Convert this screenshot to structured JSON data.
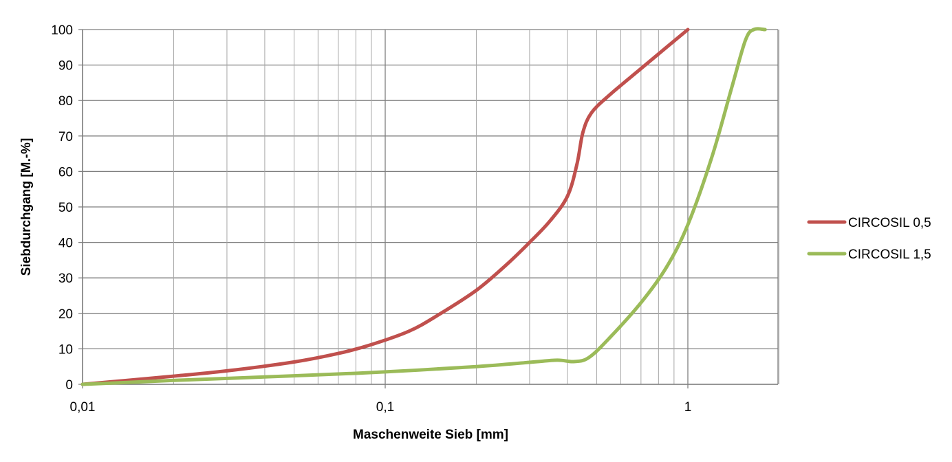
{
  "chart_data": {
    "type": "line",
    "title": "",
    "xlabel": "Maschenweite Sieb [mm]",
    "ylabel": "Siebdurchgang [M.-%]",
    "x_scale": "log",
    "xlim": [
      0.01,
      2
    ],
    "ylim": [
      0,
      100
    ],
    "grid": true,
    "legend_position": "right",
    "x_tick_labels": [
      {
        "value": 0.01,
        "label": "0,01"
      },
      {
        "value": 0.1,
        "label": "0,1"
      },
      {
        "value": 1,
        "label": "1"
      }
    ],
    "y_tick_labels": [
      {
        "value": 0,
        "label": "0"
      },
      {
        "value": 10,
        "label": "10"
      },
      {
        "value": 20,
        "label": "20"
      },
      {
        "value": 30,
        "label": "30"
      },
      {
        "value": 40,
        "label": "40"
      },
      {
        "value": 50,
        "label": "50"
      },
      {
        "value": 60,
        "label": "60"
      },
      {
        "value": 70,
        "label": "70"
      },
      {
        "value": 80,
        "label": "80"
      },
      {
        "value": 90,
        "label": "90"
      },
      {
        "value": 100,
        "label": "100"
      }
    ],
    "series": [
      {
        "name": "CIRCOSIL 0,5",
        "color": "#c0504d",
        "points": [
          {
            "x": 0.01,
            "y": 0
          },
          {
            "x": 0.02,
            "y": 2.3
          },
          {
            "x": 0.03,
            "y": 3.8
          },
          {
            "x": 0.05,
            "y": 6.3
          },
          {
            "x": 0.07,
            "y": 8.7
          },
          {
            "x": 0.09,
            "y": 11.2
          },
          {
            "x": 0.12,
            "y": 15
          },
          {
            "x": 0.15,
            "y": 19.6
          },
          {
            "x": 0.2,
            "y": 26.5
          },
          {
            "x": 0.25,
            "y": 33.5
          },
          {
            "x": 0.3,
            "y": 40
          },
          {
            "x": 0.35,
            "y": 46
          },
          {
            "x": 0.4,
            "y": 53
          },
          {
            "x": 0.43,
            "y": 62
          },
          {
            "x": 0.45,
            "y": 71
          },
          {
            "x": 0.48,
            "y": 76.5
          },
          {
            "x": 0.55,
            "y": 81.5
          },
          {
            "x": 0.7,
            "y": 89
          },
          {
            "x": 0.85,
            "y": 95
          },
          {
            "x": 1,
            "y": 100
          }
        ]
      },
      {
        "name": "CIRCOSIL 1,5",
        "color": "#9bbb59",
        "points": [
          {
            "x": 0.01,
            "y": 0
          },
          {
            "x": 0.02,
            "y": 1.1
          },
          {
            "x": 0.05,
            "y": 2.4
          },
          {
            "x": 0.1,
            "y": 3.5
          },
          {
            "x": 0.2,
            "y": 5
          },
          {
            "x": 0.3,
            "y": 6.2
          },
          {
            "x": 0.37,
            "y": 6.8
          },
          {
            "x": 0.42,
            "y": 6.4
          },
          {
            "x": 0.47,
            "y": 7.5
          },
          {
            "x": 0.55,
            "y": 13
          },
          {
            "x": 0.7,
            "y": 23
          },
          {
            "x": 0.85,
            "y": 33
          },
          {
            "x": 1,
            "y": 45
          },
          {
            "x": 1.2,
            "y": 64
          },
          {
            "x": 1.4,
            "y": 84
          },
          {
            "x": 1.55,
            "y": 97
          },
          {
            "x": 1.65,
            "y": 100
          },
          {
            "x": 1.8,
            "y": 100
          }
        ]
      }
    ]
  }
}
